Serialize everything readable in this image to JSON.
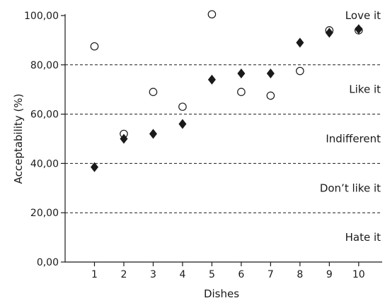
{
  "chart_data": {
    "type": "scatter",
    "xlabel": "Dishes",
    "ylabel": "Acceptability (%)",
    "x_ticks": [
      "1",
      "2",
      "3",
      "4",
      "5",
      "6",
      "7",
      "8",
      "9",
      "10"
    ],
    "y_ticks": [
      "0,00",
      "20,00",
      "40,00",
      "60,00",
      "80,00",
      "100,00"
    ],
    "xlim": [
      0,
      10.8
    ],
    "ylim": [
      0,
      100
    ],
    "grid": false,
    "reference_lines": [
      20,
      40,
      60,
      80
    ],
    "zones": [
      {
        "label": "Love it",
        "y": 100
      },
      {
        "label": "Like it",
        "y": 70
      },
      {
        "label": "Indifferent",
        "y": 50
      },
      {
        "label": "Don’t like it",
        "y": 30
      },
      {
        "label": "Hate it",
        "y": 10
      }
    ],
    "series": [
      {
        "marker": "open-circle",
        "points": [
          {
            "x": 1,
            "y": 87.5
          },
          {
            "x": 2,
            "y": 52.0
          },
          {
            "x": 3,
            "y": 69.0
          },
          {
            "x": 4,
            "y": 63.0
          },
          {
            "x": 5,
            "y": 100.5
          },
          {
            "x": 6,
            "y": 69.0
          },
          {
            "x": 7,
            "y": 67.5
          },
          {
            "x": 8,
            "y": 77.5
          },
          {
            "x": 9,
            "y": 94.0
          },
          {
            "x": 10,
            "y": 94.0
          }
        ]
      },
      {
        "marker": "filled-diamond",
        "points": [
          {
            "x": 1,
            "y": 38.5
          },
          {
            "x": 2,
            "y": 50.0
          },
          {
            "x": 3,
            "y": 52.0
          },
          {
            "x": 4,
            "y": 56.0
          },
          {
            "x": 5,
            "y": 74.0
          },
          {
            "x": 6,
            "y": 76.5
          },
          {
            "x": 7,
            "y": 76.5
          },
          {
            "x": 8,
            "y": 89.0
          },
          {
            "x": 9,
            "y": 93.0
          },
          {
            "x": 10,
            "y": 94.5
          }
        ]
      }
    ],
    "colors": {
      "axis": "#1a1a1a",
      "marker_fill": "#1a1a1a",
      "open_marker_fill": "#ffffff"
    }
  }
}
